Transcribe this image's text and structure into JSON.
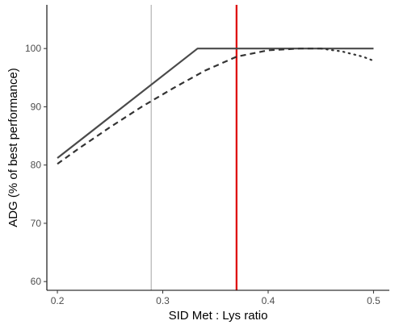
{
  "chart_data": {
    "type": "line",
    "title": "",
    "xlabel": "SID Met : Lys ratio",
    "ylabel": "ADG (% of best performance)",
    "xlim": [
      0.19,
      0.515
    ],
    "ylim": [
      58.5,
      107.5
    ],
    "x_ticks": [
      0.2,
      0.3,
      0.4,
      0.5
    ],
    "y_ticks": [
      60,
      70,
      80,
      90,
      100
    ],
    "x_tick_labels": [
      "0.2",
      "0.3",
      "0.4",
      "0.5"
    ],
    "y_tick_labels": [
      "60",
      "70",
      "80",
      "90",
      "100"
    ],
    "grid": false,
    "legend": "none",
    "series": [
      {
        "style": "solid",
        "color": "#4a4a4a",
        "points": [
          [
            0.2,
            81.2
          ],
          [
            0.333,
            100.0
          ],
          [
            0.5,
            100.0
          ]
        ]
      },
      {
        "style": "dashed",
        "color": "#333333",
        "points": [
          [
            0.2,
            80.2
          ],
          [
            0.22,
            82.8
          ],
          [
            0.25,
            86.5
          ],
          [
            0.28,
            90.0
          ],
          [
            0.31,
            93.2
          ],
          [
            0.34,
            96.2
          ],
          [
            0.37,
            98.6
          ],
          [
            0.4,
            99.7
          ],
          [
            0.43,
            100.0
          ],
          [
            0.45,
            100.0
          ]
        ]
      },
      {
        "style": "dotted",
        "color": "#333333",
        "points": [
          [
            0.45,
            100.0
          ],
          [
            0.47,
            99.5
          ],
          [
            0.49,
            98.6
          ],
          [
            0.5,
            97.9
          ]
        ]
      }
    ],
    "reference_lines": [
      {
        "axis": "x",
        "value": 0.289,
        "color": "#999999"
      },
      {
        "axis": "x",
        "value": 0.37,
        "color": "#dd0000"
      }
    ]
  }
}
